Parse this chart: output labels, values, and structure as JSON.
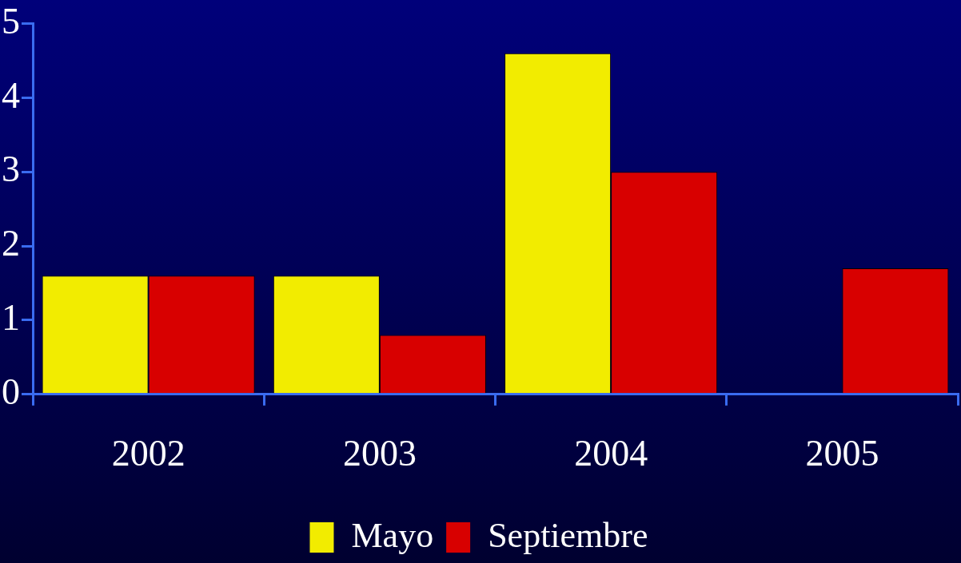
{
  "chart_data": {
    "type": "bar",
    "categories": [
      "2002",
      "2003",
      "2004",
      "2005"
    ],
    "series": [
      {
        "name": "Mayo",
        "color": "#f2ec00",
        "values": [
          1.6,
          1.6,
          4.6,
          null
        ]
      },
      {
        "name": "Septiembre",
        "color": "#d80000",
        "values": [
          1.6,
          0.8,
          3.0,
          1.7
        ]
      }
    ],
    "ylim": [
      0,
      5
    ],
    "yticks": [
      0,
      1,
      2,
      3,
      4,
      5
    ],
    "grid": false,
    "legend": "bottom"
  }
}
